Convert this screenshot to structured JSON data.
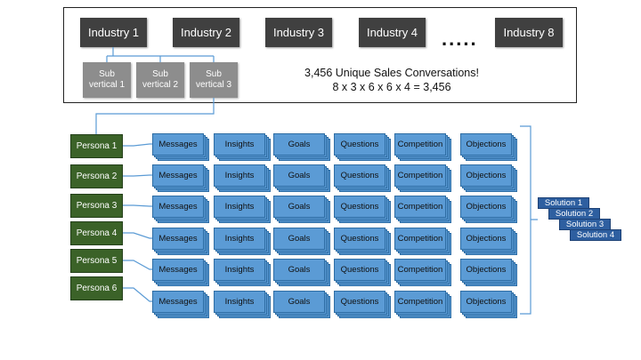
{
  "industries": [
    "Industry 1",
    "Industry 2",
    "Industry 3",
    "Industry 4",
    "Industry 8"
  ],
  "ellipsis": ".....",
  "sub_verticals": [
    "Sub\nvertical 1",
    "Sub\nvertical 2",
    "Sub\nvertical 3"
  ],
  "summary": {
    "line1": "3,456 Unique Sales Conversations!",
    "line2": "8 x 3 x 6 x 6 x 4 = 3,456"
  },
  "personas": [
    "Persona 1",
    "Persona 2",
    "Persona 3",
    "Persona 4",
    "Persona 5",
    "Persona 6"
  ],
  "topics": [
    "Messages",
    "Insights",
    "Goals",
    "Questions",
    "Competition",
    "Objections"
  ],
  "solutions": [
    "Solution 1",
    "Solution 2",
    "Solution 3",
    "Solution 4"
  ],
  "colors": {
    "industry": "#404040",
    "sub_vertical": "#8d8d8d",
    "persona": "#3b6228",
    "topic_card": "#5b9bd5",
    "solution": "#2e5fa0",
    "connector": "#5b9bd5"
  }
}
